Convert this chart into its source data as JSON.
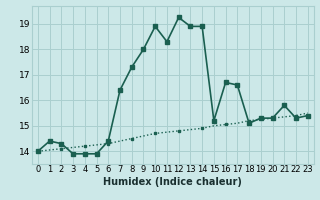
{
  "xlabel": "Humidex (Indice chaleur)",
  "xlim": [
    -0.5,
    23.5
  ],
  "ylim": [
    13.5,
    19.7
  ],
  "yticks": [
    14,
    15,
    16,
    17,
    18,
    19
  ],
  "xticks": [
    0,
    1,
    2,
    3,
    4,
    5,
    6,
    7,
    8,
    9,
    10,
    11,
    12,
    13,
    14,
    15,
    16,
    17,
    18,
    19,
    20,
    21,
    22,
    23
  ],
  "bg_color": "#cce8e8",
  "grid_color": "#aacfcf",
  "line_color": "#1a5f50",
  "solid_x": [
    0,
    1,
    2,
    3,
    4,
    5,
    6,
    7,
    8,
    9,
    10,
    11,
    12,
    13,
    14,
    15,
    16,
    17,
    18,
    19,
    20,
    21,
    22,
    23
  ],
  "solid_y": [
    14.0,
    14.4,
    14.3,
    13.9,
    13.9,
    13.9,
    14.4,
    16.4,
    17.3,
    18.0,
    18.9,
    18.3,
    19.25,
    18.9,
    18.9,
    15.2,
    16.7,
    16.6,
    15.1,
    15.3,
    15.3,
    15.8,
    15.3,
    15.4
  ],
  "diag_x": [
    0,
    1,
    2,
    3,
    4,
    5,
    6,
    7,
    8,
    9,
    10,
    11,
    12,
    13,
    14,
    15,
    16,
    17,
    18,
    19,
    20,
    21,
    22,
    23
  ],
  "diag_y": [
    14.0,
    14.05,
    14.1,
    14.15,
    14.2,
    14.25,
    14.3,
    14.4,
    14.5,
    14.6,
    14.7,
    14.75,
    14.8,
    14.85,
    14.9,
    15.0,
    15.05,
    15.1,
    15.2,
    15.25,
    15.3,
    15.35,
    15.4,
    15.5
  ]
}
